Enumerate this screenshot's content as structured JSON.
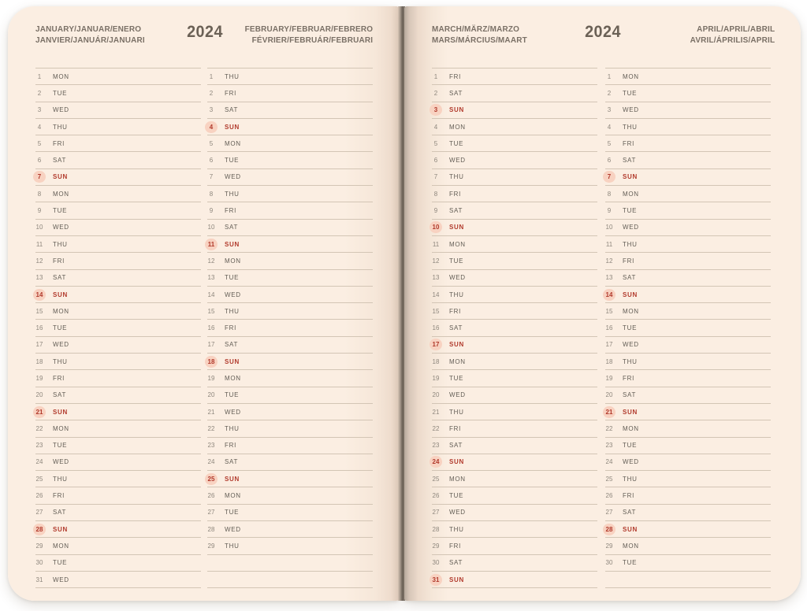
{
  "year": "2024",
  "sunday_abbrev": "SUN",
  "colors": {
    "page_bg": "#fbeee2",
    "line": "#d3c5b5",
    "day_text": "#625d55",
    "num_text": "#8e877d",
    "sunday_red": "#b13a2c",
    "sunday_circle": "#f8d2c1",
    "header_text": "#7a7066",
    "year_text": "#6b6156"
  },
  "pages": [
    {
      "year_label": "2024",
      "left_month_title": "JANUARY/JANUAR/ENERO\nJANVIER/JANUÁR/JANUARI",
      "right_month_title": "FEBRUARY/FEBRUAR/FEBRERO\nFÉVRIER/FEBRUÁR/FEBRUARI"
    },
    {
      "year_label": "2024",
      "left_month_title": "MARCH/MÄRZ/MARZO\nMARS/MÁRCIUS/MAART",
      "right_month_title": "APRIL/APRIL/ABRIL\nAVRIL/ÁPRILIS/APRIL"
    }
  ],
  "months": [
    {
      "name": "january",
      "blank_rows": 0,
      "days": [
        [
          1,
          "MON"
        ],
        [
          2,
          "TUE"
        ],
        [
          3,
          "WED"
        ],
        [
          4,
          "THU"
        ],
        [
          5,
          "FRI"
        ],
        [
          6,
          "SAT"
        ],
        [
          7,
          "SUN"
        ],
        [
          8,
          "MON"
        ],
        [
          9,
          "TUE"
        ],
        [
          10,
          "WED"
        ],
        [
          11,
          "THU"
        ],
        [
          12,
          "FRI"
        ],
        [
          13,
          "SAT"
        ],
        [
          14,
          "SUN"
        ],
        [
          15,
          "MON"
        ],
        [
          16,
          "TUE"
        ],
        [
          17,
          "WED"
        ],
        [
          18,
          "THU"
        ],
        [
          19,
          "FRI"
        ],
        [
          20,
          "SAT"
        ],
        [
          21,
          "SUN"
        ],
        [
          22,
          "MON"
        ],
        [
          23,
          "TUE"
        ],
        [
          24,
          "WED"
        ],
        [
          25,
          "THU"
        ],
        [
          26,
          "FRI"
        ],
        [
          27,
          "SAT"
        ],
        [
          28,
          "SUN"
        ],
        [
          29,
          "MON"
        ],
        [
          30,
          "TUE"
        ],
        [
          31,
          "WED"
        ]
      ]
    },
    {
      "name": "february",
      "blank_rows": 2,
      "days": [
        [
          1,
          "THU"
        ],
        [
          2,
          "FRI"
        ],
        [
          3,
          "SAT"
        ],
        [
          4,
          "SUN"
        ],
        [
          5,
          "MON"
        ],
        [
          6,
          "TUE"
        ],
        [
          7,
          "WED"
        ],
        [
          8,
          "THU"
        ],
        [
          9,
          "FRI"
        ],
        [
          10,
          "SAT"
        ],
        [
          11,
          "SUN"
        ],
        [
          12,
          "MON"
        ],
        [
          13,
          "TUE"
        ],
        [
          14,
          "WED"
        ],
        [
          15,
          "THU"
        ],
        [
          16,
          "FRI"
        ],
        [
          17,
          "SAT"
        ],
        [
          18,
          "SUN"
        ],
        [
          19,
          "MON"
        ],
        [
          20,
          "TUE"
        ],
        [
          21,
          "WED"
        ],
        [
          22,
          "THU"
        ],
        [
          23,
          "FRI"
        ],
        [
          24,
          "SAT"
        ],
        [
          25,
          "SUN"
        ],
        [
          26,
          "MON"
        ],
        [
          27,
          "TUE"
        ],
        [
          28,
          "WED"
        ],
        [
          29,
          "THU"
        ]
      ]
    },
    {
      "name": "march",
      "blank_rows": 0,
      "days": [
        [
          1,
          "FRI"
        ],
        [
          2,
          "SAT"
        ],
        [
          3,
          "SUN"
        ],
        [
          4,
          "MON"
        ],
        [
          5,
          "TUE"
        ],
        [
          6,
          "WED"
        ],
        [
          7,
          "THU"
        ],
        [
          8,
          "FRI"
        ],
        [
          9,
          "SAT"
        ],
        [
          10,
          "SUN"
        ],
        [
          11,
          "MON"
        ],
        [
          12,
          "TUE"
        ],
        [
          13,
          "WED"
        ],
        [
          14,
          "THU"
        ],
        [
          15,
          "FRI"
        ],
        [
          16,
          "SAT"
        ],
        [
          17,
          "SUN"
        ],
        [
          18,
          "MON"
        ],
        [
          19,
          "TUE"
        ],
        [
          20,
          "WED"
        ],
        [
          21,
          "THU"
        ],
        [
          22,
          "FRI"
        ],
        [
          23,
          "SAT"
        ],
        [
          24,
          "SUN"
        ],
        [
          25,
          "MON"
        ],
        [
          26,
          "TUE"
        ],
        [
          27,
          "WED"
        ],
        [
          28,
          "THU"
        ],
        [
          29,
          "FRI"
        ],
        [
          30,
          "SAT"
        ],
        [
          31,
          "SUN"
        ]
      ]
    },
    {
      "name": "april",
      "blank_rows": 1,
      "days": [
        [
          1,
          "MON"
        ],
        [
          2,
          "TUE"
        ],
        [
          3,
          "WED"
        ],
        [
          4,
          "THU"
        ],
        [
          5,
          "FRI"
        ],
        [
          6,
          "SAT"
        ],
        [
          7,
          "SUN"
        ],
        [
          8,
          "MON"
        ],
        [
          9,
          "TUE"
        ],
        [
          10,
          "WED"
        ],
        [
          11,
          "THU"
        ],
        [
          12,
          "FRI"
        ],
        [
          13,
          "SAT"
        ],
        [
          14,
          "SUN"
        ],
        [
          15,
          "MON"
        ],
        [
          16,
          "TUE"
        ],
        [
          17,
          "WED"
        ],
        [
          18,
          "THU"
        ],
        [
          19,
          "FRI"
        ],
        [
          20,
          "SAT"
        ],
        [
          21,
          "SUN"
        ],
        [
          22,
          "MON"
        ],
        [
          23,
          "TUE"
        ],
        [
          24,
          "WED"
        ],
        [
          25,
          "THU"
        ],
        [
          26,
          "FRI"
        ],
        [
          27,
          "SAT"
        ],
        [
          28,
          "SUN"
        ],
        [
          29,
          "MON"
        ],
        [
          30,
          "TUE"
        ]
      ]
    }
  ]
}
